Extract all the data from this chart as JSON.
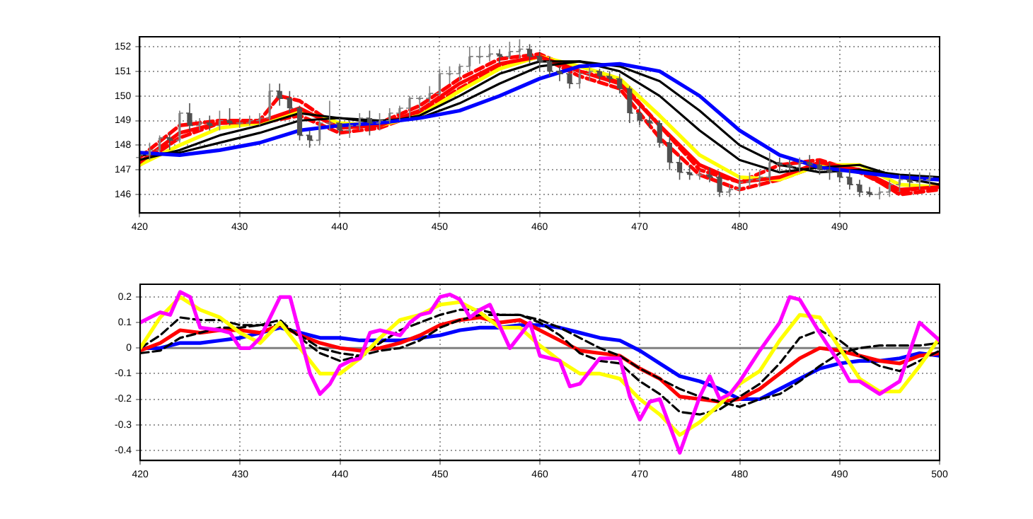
{
  "chart_data": [
    {
      "type": "line",
      "xlim": [
        420,
        500
      ],
      "xticks": [
        420,
        430,
        440,
        450,
        460,
        470,
        480,
        490
      ],
      "ylim": [
        145.25,
        152.4
      ],
      "yticks": [
        146,
        147,
        148,
        149,
        150,
        151,
        152
      ],
      "grid": true,
      "legend": false,
      "marker": "none",
      "series": [
        {
          "type": "candlestick",
          "colors": [
            "#808080",
            "#808080",
            "#808080",
            "#505050",
            "#808080",
            "#505050",
            "#808080",
            "#505050",
            "#808080",
            "#505050",
            "#808080",
            "#808080",
            "#808080",
            "#808080",
            "#505050",
            "#505050",
            "#505050",
            "#505050",
            "#808080",
            "#808080",
            "#505050",
            "#808080",
            "#808080",
            "#505050",
            "#808080",
            "#808080",
            "#808080",
            "#808080",
            "#808080",
            "#808080",
            "#808080",
            "#808080",
            "#808080",
            "#808080",
            "#808080",
            "#808080",
            "#505050",
            "#808080",
            "#808080",
            "#505050",
            "#505050",
            "#505050",
            "#505050",
            "#505050",
            "#808080",
            "#808080",
            "#505050",
            "#505050",
            "#505050",
            "#505050",
            "#505050",
            "#505050",
            "#505050",
            "#505050",
            "#505050",
            "#505050",
            "#808080",
            "#505050",
            "#505050",
            "#808080",
            "#808080",
            "#808080",
            "#808080",
            "#808080",
            "#505050",
            "#505050",
            "#808080",
            "#505050",
            "#505050",
            "#505050",
            "#505050",
            "#505050",
            "#505050",
            "#505050",
            "#808080",
            "#808080",
            "#808080",
            "#505050",
            "#808080",
            "#808080"
          ],
          "x": [
            420,
            421,
            422,
            423,
            424,
            425,
            426,
            427,
            428,
            429,
            430,
            431,
            432,
            433,
            434,
            435,
            436,
            437,
            438,
            439,
            440,
            441,
            442,
            443,
            444,
            445,
            446,
            447,
            448,
            449,
            450,
            451,
            452,
            453,
            454,
            455,
            456,
            457,
            458,
            459,
            460,
            461,
            462,
            463,
            464,
            465,
            466,
            467,
            468,
            469,
            470,
            471,
            472,
            473,
            474,
            475,
            476,
            477,
            478,
            479,
            480,
            481,
            482,
            483,
            484,
            485,
            486,
            487,
            488,
            489,
            490,
            491,
            492,
            493,
            494,
            495,
            496,
            497,
            498,
            499
          ],
          "ohlc": [
            [
              147.5,
              147.9,
              147.2,
              147.6
            ],
            [
              147.6,
              148.1,
              147.4,
              147.8
            ],
            [
              147.8,
              148.4,
              147.7,
              148.3
            ],
            [
              148.3,
              148.5,
              147.8,
              148.2
            ],
            [
              148.2,
              149.4,
              148.1,
              149.3
            ],
            [
              149.3,
              149.7,
              148.6,
              148.8
            ],
            [
              148.8,
              149.1,
              148.6,
              148.9
            ],
            [
              148.9,
              149.2,
              148.6,
              148.8
            ],
            [
              148.8,
              149.4,
              148.6,
              149.0
            ],
            [
              149.0,
              149.5,
              148.8,
              148.9
            ],
            [
              148.9,
              149.1,
              148.7,
              148.9
            ],
            [
              148.9,
              149.2,
              148.8,
              149.0
            ],
            [
              149.0,
              149.3,
              148.8,
              149.1
            ],
            [
              149.1,
              150.5,
              149.0,
              150.2
            ],
            [
              150.2,
              150.5,
              149.6,
              149.9
            ],
            [
              149.9,
              150.2,
              149.3,
              149.5
            ],
            [
              149.5,
              149.6,
              148.2,
              148.4
            ],
            [
              148.4,
              148.6,
              147.9,
              148.2
            ],
            [
              148.2,
              149.0,
              148.0,
              148.9
            ],
            [
              148.9,
              149.8,
              148.6,
              148.9
            ],
            [
              148.9,
              149.1,
              148.4,
              148.6
            ],
            [
              148.6,
              149.0,
              148.3,
              148.8
            ],
            [
              148.8,
              149.3,
              148.6,
              149.1
            ],
            [
              149.1,
              149.4,
              148.4,
              148.9
            ],
            [
              148.9,
              149.3,
              148.6,
              149.0
            ],
            [
              149.0,
              149.5,
              148.9,
              149.3
            ],
            [
              149.3,
              149.6,
              149.0,
              149.5
            ],
            [
              149.5,
              150.0,
              149.1,
              149.9
            ],
            [
              149.9,
              150.0,
              149.4,
              149.9
            ],
            [
              149.9,
              150.4,
              149.7,
              150.1
            ],
            [
              150.1,
              151.1,
              150.0,
              150.9
            ],
            [
              150.9,
              151.2,
              150.5,
              150.9
            ],
            [
              150.9,
              151.3,
              150.6,
              151.2
            ],
            [
              151.2,
              152.0,
              151.0,
              151.6
            ],
            [
              151.6,
              152.0,
              151.3,
              151.6
            ],
            [
              151.6,
              152.1,
              151.4,
              151.7
            ],
            [
              151.7,
              151.9,
              151.3,
              151.6
            ],
            [
              151.6,
              152.2,
              151.5,
              151.8
            ],
            [
              151.8,
              152.3,
              151.5,
              151.9
            ],
            [
              151.9,
              152.1,
              151.3,
              151.6
            ],
            [
              151.6,
              151.8,
              151.0,
              151.4
            ],
            [
              151.4,
              151.6,
              150.8,
              151.0
            ],
            [
              151.0,
              151.2,
              150.6,
              150.9
            ],
            [
              150.9,
              151.0,
              150.3,
              150.5
            ],
            [
              150.5,
              151.1,
              150.3,
              150.9
            ],
            [
              150.9,
              151.2,
              150.6,
              151.0
            ],
            [
              151.0,
              151.1,
              150.6,
              150.8
            ],
            [
              150.8,
              151.0,
              150.5,
              150.7
            ],
            [
              150.7,
              150.9,
              150.1,
              150.3
            ],
            [
              150.3,
              150.4,
              148.9,
              149.3
            ],
            [
              149.3,
              149.6,
              148.8,
              149.0
            ],
            [
              149.0,
              149.2,
              148.7,
              148.9
            ],
            [
              148.9,
              149.0,
              147.9,
              148.1
            ],
            [
              148.1,
              148.4,
              147.0,
              147.3
            ],
            [
              147.3,
              147.6,
              146.6,
              146.9
            ],
            [
              146.9,
              147.2,
              146.6,
              146.8
            ],
            [
              146.8,
              147.0,
              146.6,
              146.8
            ],
            [
              146.8,
              147.1,
              146.5,
              146.7
            ],
            [
              146.7,
              146.9,
              145.9,
              146.1
            ],
            [
              146.1,
              146.4,
              145.9,
              146.2
            ],
            [
              146.2,
              146.8,
              146.0,
              146.5
            ],
            [
              146.5,
              146.9,
              146.3,
              146.6
            ],
            [
              146.6,
              147.0,
              146.3,
              146.7
            ],
            [
              146.7,
              147.7,
              146.5,
              147.3
            ],
            [
              147.3,
              147.5,
              146.9,
              147.2
            ],
            [
              147.2,
              147.4,
              146.9,
              147.1
            ],
            [
              147.1,
              147.5,
              146.9,
              147.3
            ],
            [
              147.3,
              147.6,
              147.0,
              147.2
            ],
            [
              147.2,
              147.4,
              146.8,
              147.0
            ],
            [
              147.0,
              147.3,
              146.6,
              146.9
            ],
            [
              146.9,
              147.1,
              146.5,
              146.7
            ],
            [
              146.7,
              147.0,
              146.2,
              146.4
            ],
            [
              146.4,
              146.6,
              145.9,
              146.1
            ],
            [
              146.1,
              146.3,
              145.9,
              146.0
            ],
            [
              146.0,
              146.3,
              145.8,
              146.1
            ],
            [
              146.1,
              146.6,
              145.9,
              146.4
            ],
            [
              146.4,
              146.8,
              146.1,
              146.6
            ],
            [
              146.6,
              146.9,
              146.3,
              146.5
            ],
            [
              146.5,
              146.9,
              146.2,
              146.6
            ],
            [
              146.6,
              146.9,
              146.3,
              146.7
            ]
          ]
        },
        {
          "color": "#0000ff",
          "x": [
            420,
            424,
            428,
            432,
            436,
            440,
            444,
            448,
            452,
            456,
            460,
            464,
            468,
            472,
            476,
            480,
            484,
            488,
            492,
            496,
            500
          ],
          "values": [
            147.7,
            147.6,
            147.8,
            148.1,
            148.6,
            148.8,
            148.9,
            149.1,
            149.4,
            150.0,
            150.7,
            151.2,
            151.3,
            151.0,
            150.0,
            148.6,
            147.6,
            147.1,
            146.9,
            146.7,
            146.6
          ]
        },
        {
          "color": "#000000",
          "x": [
            420,
            424,
            428,
            432,
            436,
            440,
            444,
            448,
            452,
            456,
            460,
            464,
            468,
            472,
            476,
            480,
            484,
            488,
            492,
            496,
            500
          ],
          "values": [
            147.6,
            147.7,
            148.1,
            148.5,
            149.0,
            149.1,
            149.0,
            149.1,
            149.7,
            150.5,
            151.2,
            151.4,
            151.2,
            150.6,
            149.4,
            148.0,
            147.2,
            146.9,
            147.0,
            146.8,
            146.7
          ]
        },
        {
          "color": "#000000",
          "x": [
            420,
            424,
            428,
            432,
            436,
            440,
            444,
            448,
            452,
            456,
            460,
            464,
            468,
            472,
            476,
            480,
            484,
            488,
            492,
            496,
            500
          ],
          "values": [
            147.4,
            147.8,
            148.4,
            148.8,
            149.3,
            149.1,
            148.9,
            149.2,
            150.0,
            150.9,
            151.4,
            151.4,
            151.0,
            150.0,
            148.6,
            147.4,
            146.9,
            147.1,
            147.2,
            146.7,
            146.4
          ]
        },
        {
          "color": "#ff0000",
          "x": [
            420,
            424,
            428,
            432,
            436,
            440,
            444,
            448,
            452,
            456,
            460,
            464,
            468,
            472,
            476,
            480,
            484,
            488,
            492,
            496,
            500
          ],
          "values": [
            147.3,
            148.5,
            148.9,
            148.95,
            149.5,
            148.7,
            148.8,
            149.4,
            150.5,
            151.3,
            151.6,
            151.0,
            150.5,
            148.8,
            147.2,
            146.5,
            146.7,
            147.3,
            147.0,
            146.2,
            146.3
          ]
        },
        {
          "color": "#ffff00",
          "x": [
            420,
            424,
            428,
            432,
            436,
            440,
            444,
            448,
            452,
            456,
            460,
            464,
            468,
            472,
            476,
            480,
            484,
            488,
            492,
            496,
            500
          ],
          "values": [
            147.2,
            148.0,
            148.7,
            148.9,
            149.4,
            148.9,
            148.8,
            149.2,
            150.2,
            151.1,
            151.6,
            151.2,
            150.7,
            149.2,
            147.6,
            146.7,
            146.6,
            147.2,
            147.2,
            146.4,
            146.3
          ]
        },
        {
          "color": "#ff0000",
          "line_style": "dashed",
          "x": [
            420,
            424,
            428,
            432,
            434,
            436,
            440,
            444,
            448,
            452,
            456,
            460,
            464,
            468,
            472,
            476,
            480,
            484,
            488,
            492,
            496,
            500
          ],
          "values": [
            147.5,
            148.8,
            149.0,
            149.0,
            150.0,
            149.8,
            148.7,
            148.9,
            149.6,
            150.7,
            151.5,
            151.7,
            151.0,
            150.6,
            148.8,
            147.0,
            146.5,
            147.2,
            147.4,
            146.9,
            146.1,
            146.4
          ]
        },
        {
          "color": "#ff0000",
          "line_style": "dashed",
          "x": [
            420,
            424,
            428,
            432,
            436,
            440,
            444,
            448,
            452,
            456,
            460,
            464,
            468,
            472,
            476,
            480,
            484,
            488,
            492,
            496,
            500
          ],
          "values": [
            147.2,
            148.3,
            148.9,
            148.9,
            149.2,
            148.5,
            148.7,
            149.3,
            150.3,
            151.2,
            151.6,
            150.8,
            150.3,
            148.3,
            146.8,
            146.2,
            146.6,
            147.2,
            147.0,
            146.0,
            146.2
          ]
        }
      ]
    },
    {
      "type": "line",
      "xlim": [
        420,
        500
      ],
      "xticks": [
        420,
        430,
        440,
        450,
        460,
        470,
        480,
        490,
        500
      ],
      "ylim": [
        -0.44,
        0.25
      ],
      "yticks": [
        {
          "value": 0.2,
          "label": "0.2"
        },
        {
          "value": 0.1,
          "label": "0.1"
        },
        0,
        {
          "value": -0.1,
          "label": "-0.1"
        },
        {
          "value": -0.2,
          "label": "-0.2"
        },
        {
          "value": -0.3,
          "label": "-0.3"
        },
        {
          "value": -0.4,
          "label": "-0.4"
        }
      ],
      "grid": true,
      "legend": false,
      "marker": "none",
      "ref_lines": [
        {
          "axis": "y",
          "value": 0,
          "color": "#808080"
        }
      ],
      "series": [
        {
          "color": "#ff00ff",
          "x": [
            420,
            422,
            423,
            424,
            425,
            426,
            428,
            429,
            430,
            431,
            432,
            434,
            435,
            436,
            437,
            438,
            439,
            440,
            441,
            442,
            443,
            444,
            446,
            447,
            448,
            449,
            450,
            451,
            452,
            453,
            454,
            455,
            457,
            459,
            460,
            462,
            463,
            464,
            466,
            468,
            469,
            470,
            471,
            472,
            474,
            476,
            477,
            478,
            479,
            480,
            482,
            484,
            485,
            486,
            488,
            490,
            491,
            492,
            494,
            496,
            498,
            500
          ],
          "values": [
            0.1,
            0.14,
            0.13,
            0.22,
            0.2,
            0.08,
            0.07,
            0.06,
            0.0,
            0.0,
            0.04,
            0.2,
            0.2,
            0.05,
            -0.1,
            -0.18,
            -0.14,
            -0.07,
            -0.05,
            -0.04,
            0.06,
            0.07,
            0.05,
            0.1,
            0.13,
            0.14,
            0.2,
            0.21,
            0.19,
            0.12,
            0.15,
            0.17,
            0.0,
            0.1,
            -0.03,
            -0.05,
            -0.15,
            -0.14,
            -0.04,
            -0.04,
            -0.19,
            -0.28,
            -0.21,
            -0.2,
            -0.41,
            -0.19,
            -0.11,
            -0.2,
            -0.18,
            -0.13,
            -0.01,
            0.1,
            0.2,
            0.19,
            0.06,
            -0.06,
            -0.13,
            -0.13,
            -0.18,
            -0.13,
            0.1,
            0.03
          ]
        },
        {
          "color": "#ffff00",
          "x": [
            420,
            422,
            424,
            426,
            428,
            430,
            432,
            434,
            436,
            438,
            440,
            442,
            444,
            446,
            448,
            450,
            452,
            454,
            456,
            458,
            460,
            462,
            464,
            466,
            468,
            470,
            472,
            474,
            476,
            478,
            480,
            482,
            484,
            486,
            488,
            490,
            492,
            494,
            496,
            498,
            500
          ],
          "values": [
            0.0,
            0.12,
            0.2,
            0.15,
            0.12,
            0.06,
            0.02,
            0.1,
            0.0,
            -0.1,
            -0.1,
            -0.04,
            0.04,
            0.11,
            0.13,
            0.17,
            0.18,
            0.14,
            0.08,
            0.08,
            0.01,
            -0.05,
            -0.1,
            -0.1,
            -0.12,
            -0.2,
            -0.26,
            -0.34,
            -0.29,
            -0.22,
            -0.14,
            -0.09,
            0.03,
            0.13,
            0.12,
            0.0,
            -0.12,
            -0.17,
            -0.17,
            -0.07,
            0.04
          ]
        },
        {
          "color": "#000000",
          "line_style": "dashed",
          "x": [
            420,
            422,
            424,
            426,
            428,
            430,
            432,
            434,
            436,
            438,
            440,
            442,
            444,
            446,
            448,
            450,
            452,
            454,
            456,
            458,
            460,
            462,
            464,
            466,
            468,
            470,
            472,
            474,
            476,
            478,
            480,
            482,
            484,
            486,
            488,
            490,
            492,
            494,
            496,
            498,
            500
          ],
          "values": [
            0.0,
            0.05,
            0.12,
            0.11,
            0.11,
            0.09,
            0.09,
            0.11,
            0.04,
            -0.02,
            -0.05,
            -0.03,
            0.02,
            0.07,
            0.1,
            0.13,
            0.15,
            0.15,
            0.13,
            0.13,
            0.1,
            0.05,
            -0.02,
            -0.05,
            -0.06,
            -0.13,
            -0.18,
            -0.25,
            -0.26,
            -0.24,
            -0.19,
            -0.14,
            -0.06,
            0.04,
            0.07,
            0.03,
            -0.03,
            -0.07,
            -0.09,
            -0.05,
            -0.01
          ]
        },
        {
          "color": "#000000",
          "line_style": "dashed",
          "x": [
            420,
            422,
            424,
            426,
            428,
            430,
            432,
            434,
            436,
            438,
            440,
            442,
            444,
            446,
            448,
            450,
            452,
            454,
            456,
            458,
            460,
            462,
            464,
            466,
            468,
            470,
            472,
            474,
            476,
            478,
            480,
            482,
            484,
            486,
            488,
            490,
            492,
            494,
            496,
            498,
            500
          ],
          "values": [
            -0.02,
            -0.01,
            0.04,
            0.06,
            0.08,
            0.08,
            0.09,
            0.09,
            0.05,
            0.0,
            -0.02,
            -0.03,
            -0.01,
            0.0,
            0.03,
            0.08,
            0.11,
            0.13,
            0.13,
            0.13,
            0.11,
            0.08,
            0.04,
            0.0,
            -0.03,
            -0.08,
            -0.12,
            -0.16,
            -0.19,
            -0.21,
            -0.23,
            -0.2,
            -0.18,
            -0.13,
            -0.07,
            -0.02,
            0.0,
            0.01,
            0.01,
            0.01,
            0.02
          ]
        },
        {
          "color": "#ff0000",
          "x": [
            420,
            422,
            424,
            426,
            428,
            430,
            432,
            434,
            436,
            438,
            440,
            442,
            444,
            446,
            448,
            450,
            452,
            454,
            456,
            458,
            460,
            462,
            464,
            466,
            468,
            470,
            472,
            474,
            476,
            478,
            480,
            482,
            484,
            486,
            488,
            490,
            492,
            494,
            496,
            498,
            500
          ],
          "values": [
            -0.01,
            0.02,
            0.07,
            0.06,
            0.07,
            0.07,
            0.06,
            0.09,
            0.05,
            0.02,
            0.0,
            -0.01,
            0.0,
            0.02,
            0.05,
            0.09,
            0.11,
            0.12,
            0.1,
            0.11,
            0.07,
            0.03,
            -0.01,
            -0.02,
            -0.03,
            -0.08,
            -0.12,
            -0.19,
            -0.2,
            -0.21,
            -0.2,
            -0.16,
            -0.1,
            -0.04,
            0.0,
            -0.01,
            -0.03,
            -0.05,
            -0.06,
            -0.03,
            -0.02
          ]
        },
        {
          "color": "#0000ff",
          "x": [
            420,
            422,
            424,
            426,
            428,
            430,
            432,
            434,
            436,
            438,
            440,
            442,
            444,
            446,
            448,
            450,
            452,
            454,
            456,
            458,
            460,
            462,
            464,
            466,
            468,
            470,
            472,
            474,
            476,
            478,
            480,
            482,
            484,
            486,
            488,
            490,
            492,
            494,
            496,
            498,
            500
          ],
          "values": [
            0.0,
            0.0,
            0.02,
            0.02,
            0.03,
            0.04,
            0.06,
            0.08,
            0.06,
            0.04,
            0.04,
            0.03,
            0.03,
            0.03,
            0.04,
            0.05,
            0.07,
            0.08,
            0.08,
            0.09,
            0.09,
            0.08,
            0.06,
            0.04,
            0.03,
            -0.01,
            -0.06,
            -0.11,
            -0.13,
            -0.16,
            -0.2,
            -0.2,
            -0.16,
            -0.12,
            -0.08,
            -0.06,
            -0.05,
            -0.05,
            -0.04,
            -0.02,
            -0.03
          ]
        }
      ]
    }
  ]
}
